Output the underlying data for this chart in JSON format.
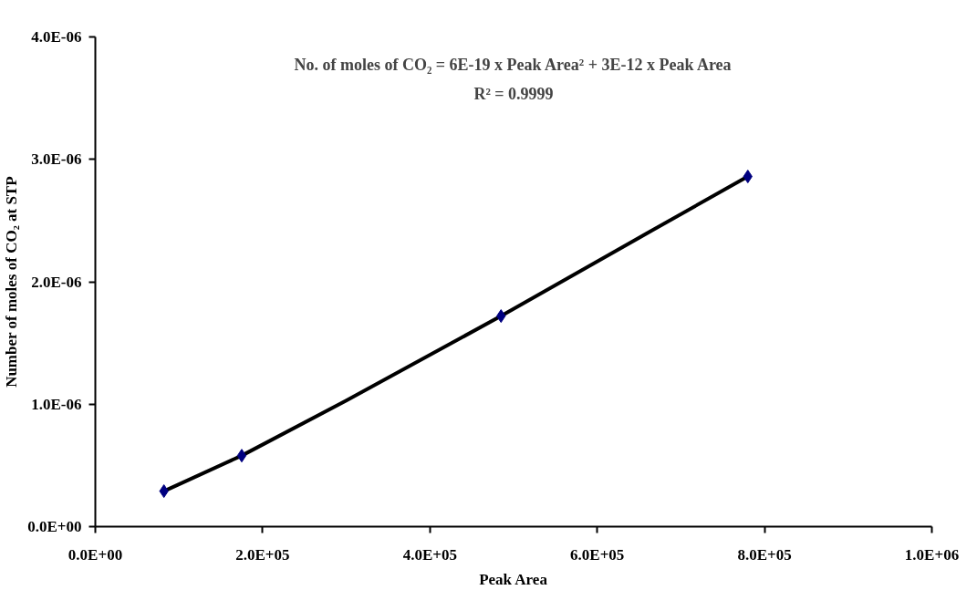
{
  "chart_data": {
    "type": "line",
    "xlabel": "Peak Area",
    "ylabel": "Number of moles of CO₂ at STP",
    "annotations": [
      "No. of moles of CO₂ = 6E-19 x Peak Area² + 3E-12 x Peak Area",
      "R² = 0.9999"
    ],
    "x": [
      82000,
      175000,
      485000,
      780000
    ],
    "series": [
      {
        "color": "#000000",
        "x": [
          82000,
          175000,
          300000,
          485000,
          650000,
          780000
        ],
        "values": [
          2.9e-07,
          5.8e-07,
          1.03e-06,
          1.72e-06,
          2.36e-06,
          2.86e-06
        ]
      },
      {
        "type": "scatter",
        "marker": "diamond",
        "color": "#000080",
        "values": [
          2.9e-07,
          5.8e-07,
          1.72e-06,
          2.86e-06
        ]
      }
    ],
    "xlim": [
      0,
      1000000
    ],
    "ylim": [
      0,
      4e-06
    ],
    "xticks": [
      {
        "value": 0,
        "label": "0.0E+00"
      },
      {
        "value": 200000,
        "label": "2.0E+05"
      },
      {
        "value": 400000,
        "label": "4.0E+05"
      },
      {
        "value": 600000,
        "label": "6.0E+05"
      },
      {
        "value": 800000,
        "label": "8.0E+05"
      },
      {
        "value": 1000000,
        "label": "1.0E+06"
      }
    ],
    "yticks": [
      {
        "value": 0,
        "label": "0.0E+00"
      },
      {
        "value": 1e-06,
        "label": "1.0E-06"
      },
      {
        "value": 2e-06,
        "label": "2.0E-06"
      },
      {
        "value": 3e-06,
        "label": "3.0E-06"
      },
      {
        "value": 4e-06,
        "label": "4.0E-06"
      }
    ],
    "grid": false
  }
}
